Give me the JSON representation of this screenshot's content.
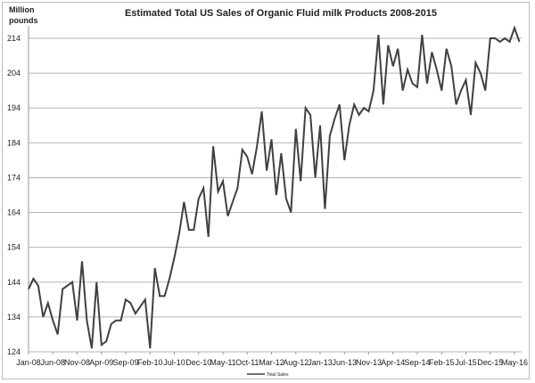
{
  "chart_data": {
    "type": "line",
    "title": "Estimated Total US Sales of Organic Fluid milk Products 2008-2015",
    "ylabel": "Million pounds",
    "xlabel": "",
    "ylim": [
      124,
      214
    ],
    "yticks": [
      124,
      134,
      144,
      154,
      164,
      174,
      184,
      194,
      204,
      214
    ],
    "xtick_labels": [
      "Jan-08",
      "Jun-08",
      "Nov-08",
      "Apr-09",
      "Sep-09",
      "Feb-10",
      "Jul-10",
      "Dec-10",
      "May-11",
      "Oct-11",
      "Mar-12",
      "Aug-12",
      "Jan-13",
      "Jun-13",
      "Nov-13",
      "Apr-14",
      "Sep-14",
      "Feb-15",
      "Jul-15",
      "Dec-15",
      "May-16"
    ],
    "xtick_interval_months": 5,
    "x_start": "Jan-08",
    "grid": true,
    "legend_position": "bottom",
    "series": [
      {
        "name": "Total Sales",
        "color": "#404040",
        "values": [
          142,
          145,
          143,
          134,
          138,
          133,
          129,
          142,
          143,
          144,
          133,
          150,
          133,
          125,
          144,
          126,
          127,
          132,
          133,
          133,
          139,
          138,
          135,
          137,
          139,
          125,
          148,
          140,
          140,
          145,
          151,
          158,
          167,
          159,
          159,
          168,
          171,
          157,
          183,
          170,
          173,
          163,
          167,
          171,
          182,
          180,
          175,
          183,
          193,
          176,
          185,
          169,
          181,
          168,
          164,
          188,
          173,
          194,
          192,
          174,
          189,
          165,
          186,
          191,
          195,
          179,
          189,
          195,
          192,
          194,
          193,
          199,
          215,
          195,
          212,
          206,
          211,
          199,
          205,
          201,
          200,
          215,
          201,
          210,
          205,
          199,
          211,
          206,
          195,
          199,
          202,
          192,
          207,
          204,
          199,
          214,
          214,
          213,
          214,
          213,
          217,
          213
        ]
      }
    ]
  }
}
